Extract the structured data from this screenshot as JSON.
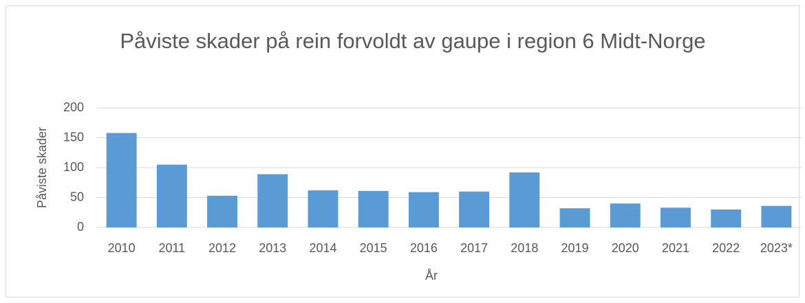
{
  "chart_data": {
    "type": "bar",
    "title": "Påviste skader på rein forvoldt av gaupe i region 6 Midt-Norge",
    "x_label": "År",
    "y_label": "Påviste skader",
    "categories": [
      "2010",
      "2011",
      "2012",
      "2013",
      "2014",
      "2015",
      "2016",
      "2017",
      "2018",
      "2019",
      "2020",
      "2021",
      "2022",
      "2023*"
    ],
    "values": [
      158,
      105,
      53,
      89,
      62,
      61,
      59,
      60,
      92,
      32,
      40,
      33,
      30,
      36
    ],
    "color": "#5b9bd5",
    "ylim": [
      0,
      200
    ],
    "yticks": [
      0,
      50,
      100,
      150,
      200
    ],
    "grid": true
  }
}
